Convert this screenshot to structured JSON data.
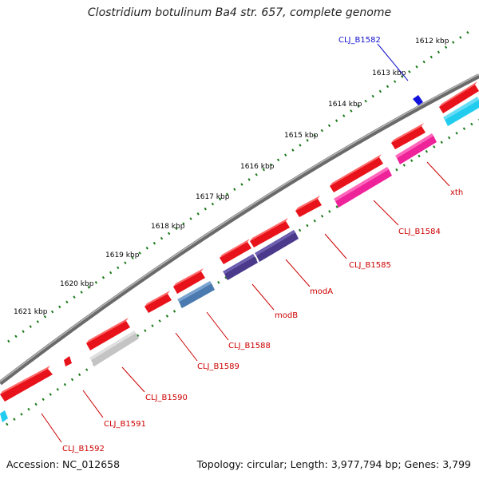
{
  "title": "Clostridium botulinum Ba4 str. 657, complete genome",
  "footer": {
    "accession": "Accession: NC_012658",
    "summary": "Topology: circular; Length: 3,977,794 bp; Genes: 3,799"
  },
  "colors": {
    "backbone": "#808080",
    "tick": "#1a7a1a",
    "forward_gene": "#e8121a",
    "label_red": "#cc0000",
    "label_blue": "#1111cc"
  },
  "ruler": {
    "labels": [
      "1612 kbp",
      "1613 kbp",
      "1614 kbp",
      "1615 kbp",
      "1616 kbp",
      "1617 kbp",
      "1618 kbp",
      "1619 kbp",
      "1620 kbp",
      "1621 kbp"
    ]
  },
  "gene_labels": [
    {
      "text": "CLJ_B1582",
      "color": "blue"
    },
    {
      "text": "xth",
      "color": "red"
    },
    {
      "text": "CLJ_B1584",
      "color": "red"
    },
    {
      "text": "CLJ_B1585",
      "color": "red"
    },
    {
      "text": "modA",
      "color": "red"
    },
    {
      "text": "modB",
      "color": "red"
    },
    {
      "text": "CLJ_B1588",
      "color": "red"
    },
    {
      "text": "CLJ_B1589",
      "color": "red"
    },
    {
      "text": "CLJ_B1590",
      "color": "red"
    },
    {
      "text": "CLJ_B1591",
      "color": "red"
    },
    {
      "text": "CLJ_B1592",
      "color": "red"
    }
  ]
}
